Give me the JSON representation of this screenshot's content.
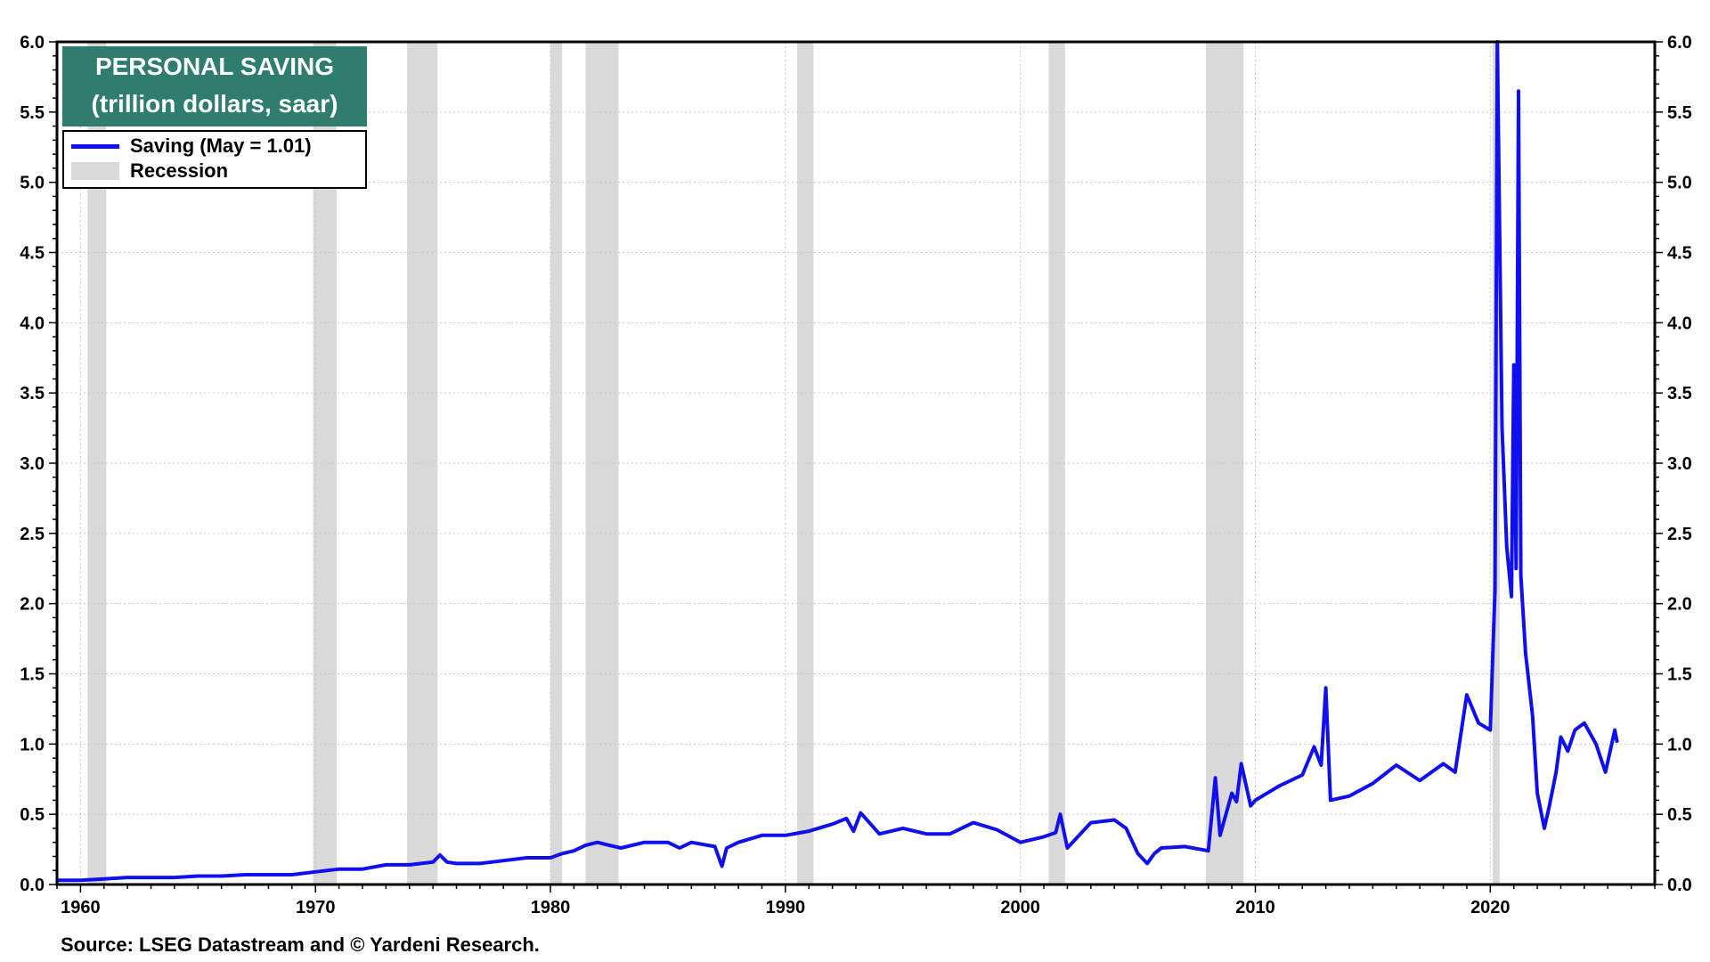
{
  "title_line1": "PERSONAL SAVING",
  "title_line2": "(trillion dollars, saar)",
  "legend": {
    "series_label": "Saving (May = 1.01)",
    "recession_label": "Recession"
  },
  "source": "Source: LSEG Datastream and © Yardeni Research.",
  "colors": {
    "series": "#1010ee",
    "recession": "#d9d9d9",
    "title_bg": "#2e7d6f"
  },
  "chart_data": {
    "type": "line",
    "title": "PERSONAL SAVING",
    "subtitle": "(trillion dollars, saar)",
    "xlim": [
      1959,
      2027
    ],
    "ylim": [
      0,
      6.0
    ],
    "x_ticks": [
      "1960",
      "1970",
      "1980",
      "1990",
      "2000",
      "2010",
      "2020"
    ],
    "x_tick_years": [
      1960,
      1970,
      1980,
      1990,
      2000,
      2010,
      2020
    ],
    "y_ticks": [
      "0.0",
      "0.5",
      "1.0",
      "1.5",
      "2.0",
      "2.5",
      "3.0",
      "3.5",
      "4.0",
      "4.5",
      "5.0",
      "5.5",
      "6.0"
    ],
    "y_tick_values": [
      0,
      0.5,
      1.0,
      1.5,
      2.0,
      2.5,
      3.0,
      3.5,
      4.0,
      4.5,
      5.0,
      5.5,
      6.0
    ],
    "grid": true,
    "legend_position": "top-left",
    "recessions": [
      [
        1960.3,
        1961.1
      ],
      [
        1969.9,
        1970.9
      ],
      [
        1973.9,
        1975.2
      ],
      [
        1980.0,
        1980.5
      ],
      [
        1981.5,
        1982.9
      ],
      [
        1990.5,
        1991.2
      ],
      [
        2001.2,
        2001.9
      ],
      [
        2007.9,
        2009.5
      ],
      [
        2020.1,
        2020.4
      ]
    ],
    "series": [
      {
        "name": "Saving (May = 1.01)",
        "x": [
          1959.0,
          1960.0,
          1961.0,
          1962.0,
          1963.0,
          1964.0,
          1965.0,
          1966.0,
          1967.0,
          1968.0,
          1969.0,
          1970.0,
          1971.0,
          1972.0,
          1973.0,
          1974.0,
          1975.0,
          1975.3,
          1975.6,
          1976.0,
          1977.0,
          1978.0,
          1979.0,
          1980.0,
          1980.5,
          1981.0,
          1981.5,
          1982.0,
          1982.5,
          1983.0,
          1984.0,
          1985.0,
          1985.5,
          1986.0,
          1987.0,
          1987.3,
          1987.5,
          1988.0,
          1989.0,
          1990.0,
          1991.0,
          1992.0,
          1992.6,
          1992.9,
          1993.2,
          1994.0,
          1995.0,
          1996.0,
          1997.0,
          1998.0,
          1999.0,
          2000.0,
          2001.0,
          2001.5,
          2001.7,
          2002.0,
          2003.0,
          2004.0,
          2004.5,
          2005.0,
          2005.4,
          2005.7,
          2006.0,
          2007.0,
          2008.0,
          2008.3,
          2008.5,
          2009.0,
          2009.2,
          2009.4,
          2009.8,
          2010.0,
          2011.0,
          2012.0,
          2012.5,
          2012.8,
          2013.0,
          2013.2,
          2014.0,
          2015.0,
          2016.0,
          2017.0,
          2018.0,
          2018.5,
          2019.0,
          2019.5,
          2020.0,
          2020.2,
          2020.3,
          2020.5,
          2020.7,
          2020.9,
          2021.0,
          2021.1,
          2021.2,
          2021.3,
          2021.5,
          2021.8,
          2022.0,
          2022.3,
          2022.5,
          2022.8,
          2023.0,
          2023.3,
          2023.6,
          2024.0,
          2024.5,
          2024.9,
          2025.1,
          2025.3,
          2025.4
        ],
        "y": [
          0.03,
          0.03,
          0.04,
          0.05,
          0.05,
          0.05,
          0.06,
          0.06,
          0.07,
          0.07,
          0.07,
          0.09,
          0.11,
          0.11,
          0.14,
          0.14,
          0.16,
          0.21,
          0.16,
          0.15,
          0.15,
          0.17,
          0.19,
          0.19,
          0.22,
          0.24,
          0.28,
          0.3,
          0.28,
          0.26,
          0.3,
          0.3,
          0.26,
          0.3,
          0.27,
          0.13,
          0.26,
          0.3,
          0.35,
          0.35,
          0.38,
          0.43,
          0.47,
          0.38,
          0.51,
          0.36,
          0.4,
          0.36,
          0.36,
          0.44,
          0.39,
          0.3,
          0.34,
          0.37,
          0.5,
          0.26,
          0.44,
          0.46,
          0.4,
          0.22,
          0.15,
          0.22,
          0.26,
          0.27,
          0.24,
          0.76,
          0.35,
          0.65,
          0.59,
          0.86,
          0.56,
          0.6,
          0.7,
          0.78,
          0.98,
          0.85,
          1.4,
          0.6,
          0.63,
          0.72,
          0.85,
          0.74,
          0.86,
          0.8,
          1.35,
          1.15,
          1.1,
          2.1,
          6.0,
          3.25,
          2.4,
          2.05,
          3.7,
          2.25,
          5.65,
          2.2,
          1.65,
          1.2,
          0.65,
          0.4,
          0.55,
          0.8,
          1.05,
          0.95,
          1.1,
          1.15,
          1.0,
          0.8,
          0.95,
          1.1,
          1.01
        ]
      }
    ]
  }
}
